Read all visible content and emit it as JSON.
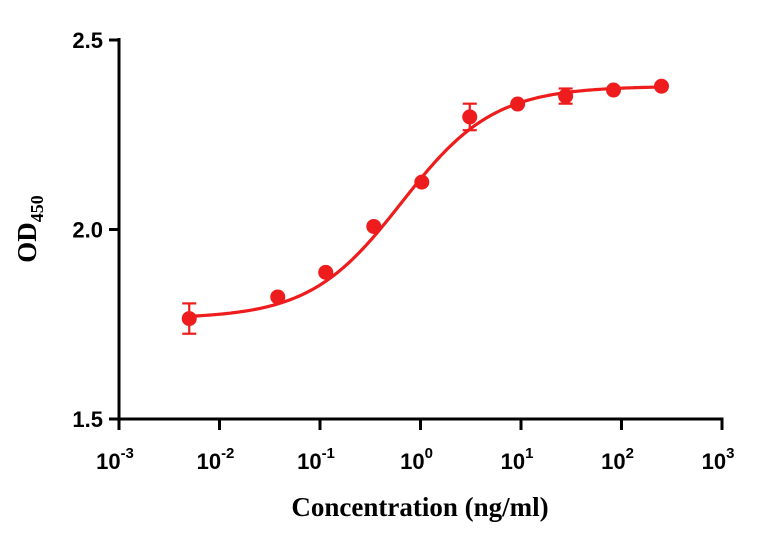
{
  "chart_data": {
    "type": "scatter",
    "title": "",
    "xlabel": "Concentration (ng/ml)",
    "ylabel": {
      "main": "OD",
      "subscript": "450"
    },
    "x_scale": "log10",
    "xlim": [
      0.001,
      1000
    ],
    "ylim": [
      1.5,
      2.5
    ],
    "x_ticks": [
      {
        "base": "10",
        "exp": "-3",
        "value": 0.001
      },
      {
        "base": "10",
        "exp": "-2",
        "value": 0.01
      },
      {
        "base": "10",
        "exp": "-1",
        "value": 0.1
      },
      {
        "base": "10",
        "exp": "0",
        "value": 1
      },
      {
        "base": "10",
        "exp": "1",
        "value": 10
      },
      {
        "base": "10",
        "exp": "2",
        "value": 100
      },
      {
        "base": "10",
        "exp": "3",
        "value": 1000
      }
    ],
    "y_ticks": [
      {
        "label": "1.5",
        "value": 1.5
      },
      {
        "label": "2.0",
        "value": 2.0
      },
      {
        "label": "2.5",
        "value": 2.5
      }
    ],
    "grid": false,
    "color": "#ee1c1c",
    "points": [
      {
        "x": 0.005,
        "y": 1.765,
        "err": 0.04
      },
      {
        "x": 0.038,
        "y": 1.822,
        "err": 0.005
      },
      {
        "x": 0.114,
        "y": 1.887,
        "err": 0.005
      },
      {
        "x": 0.343,
        "y": 2.008,
        "err": 0.005
      },
      {
        "x": 1.03,
        "y": 2.125,
        "err": 0.005
      },
      {
        "x": 3.09,
        "y": 2.297,
        "err": 0.035
      },
      {
        "x": 9.26,
        "y": 2.331,
        "err": 0.005
      },
      {
        "x": 27.8,
        "y": 2.352,
        "err": 0.02
      },
      {
        "x": 83.3,
        "y": 2.368,
        "err": 0.005
      },
      {
        "x": 250,
        "y": 2.378,
        "err": 0.005
      }
    ],
    "fit": {
      "model": "4PL",
      "bottom": 1.765,
      "top": 2.378,
      "ec50": 0.65,
      "hill": 0.95
    }
  }
}
